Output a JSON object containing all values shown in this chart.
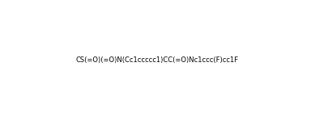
{
  "smiles": "CS(=O)(=O)N(Cc1ccccc1)CC(=O)Nc1ccc(F)cc1F",
  "title": "",
  "bg_color": "#ffffff",
  "figsize": [
    3.89,
    1.5
  ],
  "dpi": 100
}
